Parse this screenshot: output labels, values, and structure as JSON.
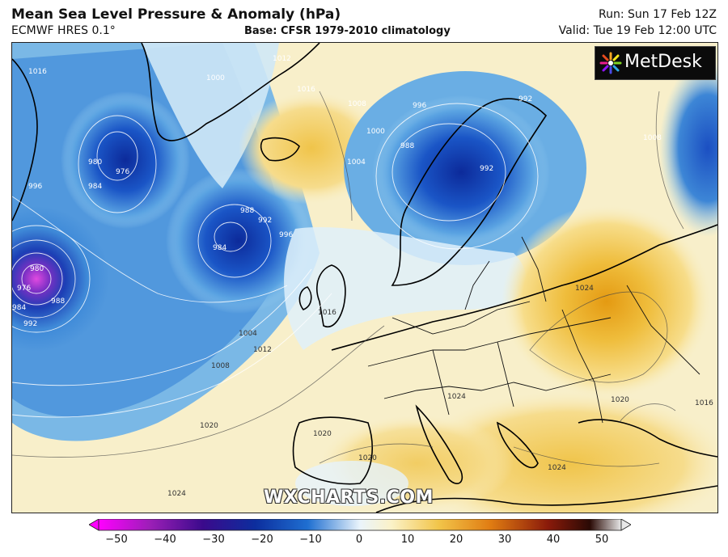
{
  "header": {
    "title": "Mean Sea Level Pressure & Anomaly (hPa)",
    "model": "ECMWF HRES 0.1°",
    "base": "Base: CFSR 1979-2010 climatology",
    "run": "Run: Sun 17 Feb 12Z",
    "valid": "Valid: Tue 19 Feb 12:00 UTC"
  },
  "logo": {
    "text": "MetDesk"
  },
  "watermark": "WXCHARTS.COM",
  "colorbar": {
    "ticks": [
      "−50",
      "−40",
      "−30",
      "−20",
      "−10",
      "0",
      "10",
      "20",
      "30",
      "40",
      "50"
    ],
    "colors": [
      "#ff00ff",
      "#9a1fb6",
      "#3a0a8c",
      "#0c2e9e",
      "#1f6fd1",
      "#9fd0ef",
      "#fbf2c8",
      "#f2c54a",
      "#e07c12",
      "#8a1a0a",
      "#e8e8e8"
    ]
  },
  "isobar_labels": [
    {
      "text": "1016"
    },
    {
      "text": "1012"
    },
    {
      "text": "1000"
    },
    {
      "text": "1016"
    },
    {
      "text": "1008"
    },
    {
      "text": "996"
    },
    {
      "text": "992"
    },
    {
      "text": "1008"
    },
    {
      "text": "988"
    },
    {
      "text": "992"
    },
    {
      "text": "1004"
    },
    {
      "text": "1000"
    },
    {
      "text": "976"
    },
    {
      "text": "980"
    },
    {
      "text": "984"
    },
    {
      "text": "996"
    },
    {
      "text": "988"
    },
    {
      "text": "992"
    },
    {
      "text": "996"
    },
    {
      "text": "984"
    },
    {
      "text": "980"
    },
    {
      "text": "976"
    },
    {
      "text": "984"
    },
    {
      "text": "988"
    },
    {
      "text": "992"
    },
    {
      "text": "1004"
    },
    {
      "text": "1012"
    },
    {
      "text": "1016"
    },
    {
      "text": "1008"
    },
    {
      "text": "1020"
    },
    {
      "text": "1024"
    },
    {
      "text": "1024"
    },
    {
      "text": "1020"
    },
    {
      "text": "1020"
    },
    {
      "text": "1020"
    },
    {
      "text": "1024"
    },
    {
      "text": "1024"
    },
    {
      "text": "1016"
    }
  ]
}
